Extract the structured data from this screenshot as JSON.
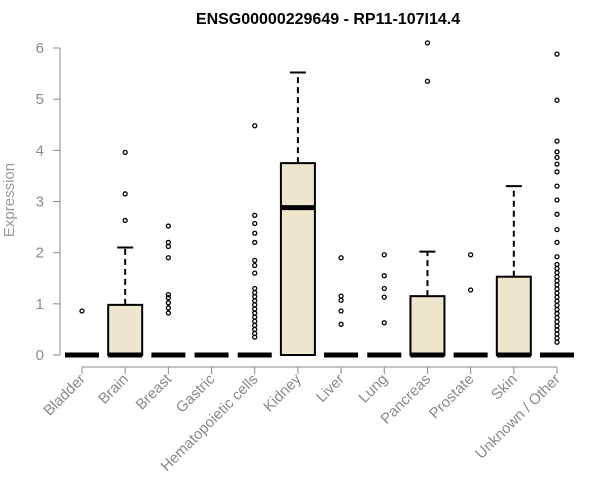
{
  "chart_data": {
    "type": "box",
    "title": "ENSG00000229649 - RP11-107I14.4",
    "ylabel": "Expression",
    "xlabel": "",
    "ylim": [
      0,
      6
    ],
    "y_ticks": [
      0,
      1,
      2,
      3,
      4,
      5,
      6
    ],
    "box_fill": "#ede6cc",
    "categories": [
      "Bladder",
      "Brain",
      "Breast",
      "Gastric",
      "Hematopoietic cells",
      "Kidney",
      "Liver",
      "Lung",
      "Pancreas",
      "Prostate",
      "Skin",
      "Unknown / Other"
    ],
    "boxes": [
      {
        "category": "Bladder",
        "q1": 0,
        "median": 0,
        "q3": 0,
        "whisker_low": 0,
        "whisker_high": 0,
        "outliers": [
          0.86
        ]
      },
      {
        "category": "Brain",
        "q1": 0,
        "median": 0,
        "q3": 0.98,
        "whisker_low": 0,
        "whisker_high": 2.1,
        "outliers": [
          2.63,
          3.15,
          3.96
        ]
      },
      {
        "category": "Breast",
        "q1": 0,
        "median": 0,
        "q3": 0,
        "whisker_low": 0,
        "whisker_high": 0,
        "outliers": [
          0.82,
          0.92,
          1.02,
          1.12,
          1.18,
          1.9,
          2.12,
          2.2,
          2.52
        ]
      },
      {
        "category": "Gastric",
        "q1": 0,
        "median": 0,
        "q3": 0,
        "whisker_low": 0,
        "whisker_high": 0,
        "outliers": []
      },
      {
        "category": "Hematopoietic cells",
        "q1": 0,
        "median": 0,
        "q3": 0,
        "whisker_low": 0,
        "whisker_high": 0,
        "outliers": [
          0.35,
          0.42,
          0.5,
          0.58,
          0.66,
          0.74,
          0.82,
          0.9,
          0.98,
          1.06,
          1.14,
          1.22,
          1.3,
          1.6,
          1.75,
          1.85,
          2.2,
          2.38,
          2.57,
          2.73,
          4.48
        ]
      },
      {
        "category": "Kidney",
        "q1": 0,
        "median": 2.88,
        "q3": 3.75,
        "whisker_low": 0,
        "whisker_high": 5.52,
        "outliers": []
      },
      {
        "category": "Liver",
        "q1": 0,
        "median": 0,
        "q3": 0,
        "whisker_low": 0,
        "whisker_high": 0,
        "outliers": [
          0.6,
          0.86,
          1.07,
          1.15,
          1.9
        ]
      },
      {
        "category": "Lung",
        "q1": 0,
        "median": 0,
        "q3": 0,
        "whisker_low": 0,
        "whisker_high": 0,
        "outliers": [
          0.63,
          1.13,
          1.3,
          1.55,
          1.96
        ]
      },
      {
        "category": "Pancreas",
        "q1": 0,
        "median": 0,
        "q3": 1.15,
        "whisker_low": 0,
        "whisker_high": 2.02,
        "outliers": [
          5.35,
          6.1
        ]
      },
      {
        "category": "Prostate",
        "q1": 0,
        "median": 0,
        "q3": 0,
        "whisker_low": 0,
        "whisker_high": 0,
        "outliers": [
          1.27,
          1.96
        ]
      },
      {
        "category": "Skin",
        "q1": 0,
        "median": 0,
        "q3": 1.53,
        "whisker_low": 0,
        "whisker_high": 3.3,
        "outliers": []
      },
      {
        "category": "Unknown / Other",
        "q1": 0,
        "median": 0,
        "q3": 0,
        "whisker_low": 0,
        "whisker_high": 0,
        "outliers": [
          0.25,
          0.33,
          0.41,
          0.49,
          0.57,
          0.65,
          0.73,
          0.81,
          0.89,
          0.97,
          1.05,
          1.13,
          1.21,
          1.29,
          1.37,
          1.45,
          1.53,
          1.61,
          1.69,
          1.77,
          1.92,
          2.2,
          2.45,
          2.75,
          3.03,
          3.3,
          3.58,
          3.73,
          3.86,
          3.97,
          4.18,
          4.98,
          5.88
        ]
      }
    ]
  }
}
